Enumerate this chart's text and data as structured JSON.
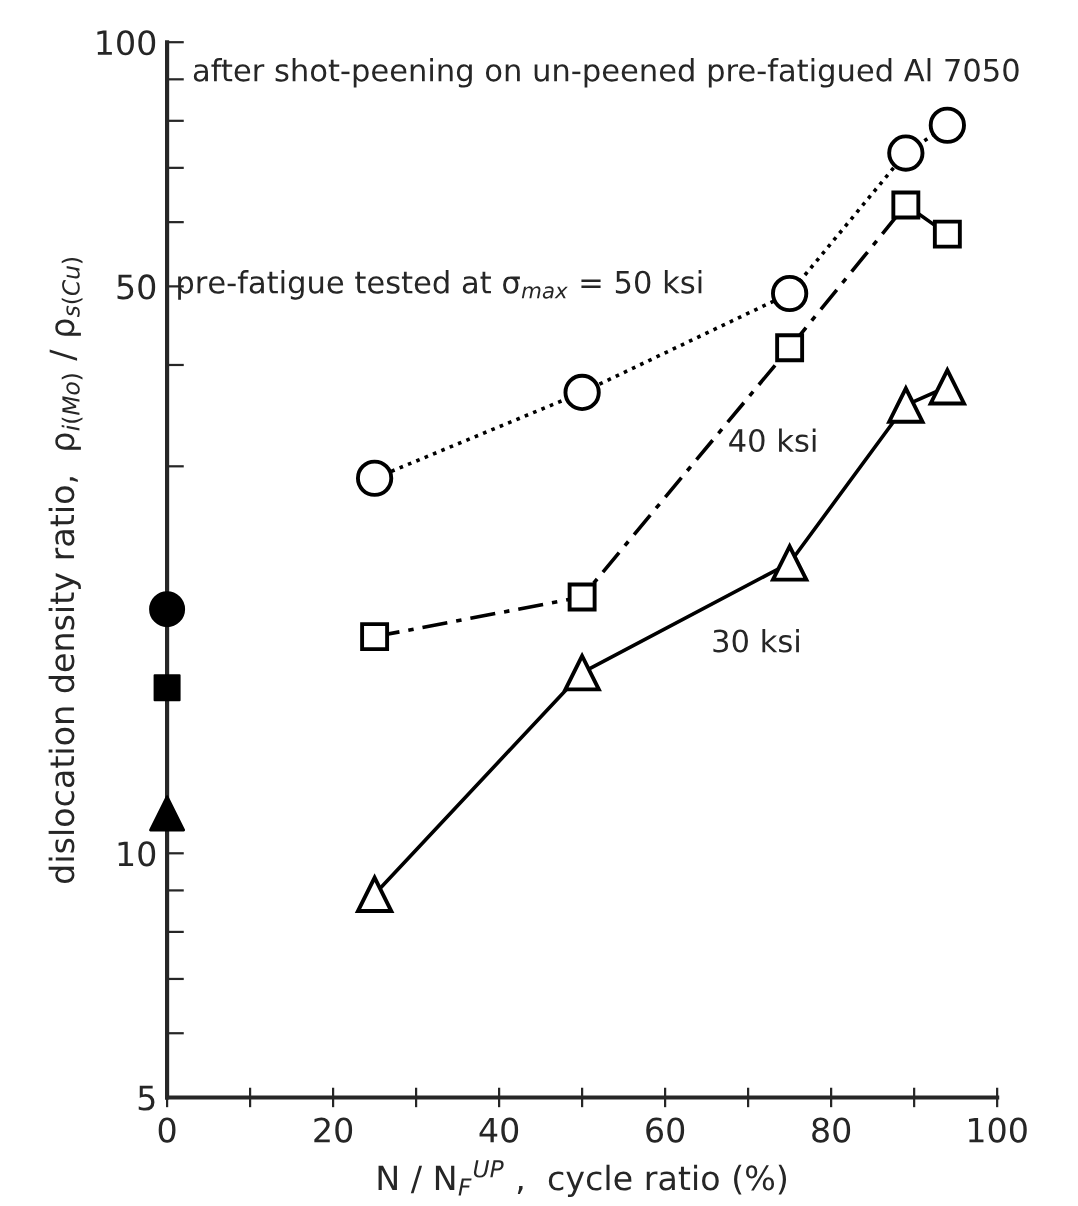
{
  "chart_data": {
    "type": "line",
    "title": "after shot-peening on un-peened pre-fatigued Al 7050",
    "xlabel": "N / N$_{F}$$^{UP}$ ,  cycle ratio (%)",
    "ylabel": "dislocation density ratio,  ρ$_{i(Mo)}$ / ρ$_{s(Cu)}$",
    "series": [
      {
        "color": "#000000",
        "marker": "circle",
        "line_style": "dotted",
        "x": [
          25,
          50,
          75,
          89,
          94
        ],
        "values": [
          29,
          37,
          49,
          73,
          79
        ]
      },
      {
        "color": "#000000",
        "marker": "square",
        "line_style": "dashed",
        "x": [
          25,
          50,
          75,
          89,
          94
        ],
        "values": [
          18.5,
          20.7,
          42,
          63,
          58
        ]
      },
      {
        "color": "#000000",
        "marker": "triangle",
        "line_style": "solid",
        "x": [
          25,
          50,
          75,
          89,
          94
        ],
        "values": [
          8.9,
          16.7,
          22.8,
          35.7,
          37.6
        ]
      },
      {
        "type": "scatter",
        "color": "#000000",
        "marker": "circle",
        "x": [
          0
        ],
        "values": [
          20
        ]
      },
      {
        "type": "scatter",
        "color": "#000000",
        "marker": "square",
        "x": [
          0
        ],
        "values": [
          16
        ]
      },
      {
        "type": "scatter",
        "color": "#000000",
        "marker": "triangle",
        "x": [
          0
        ],
        "values": [
          11.2
        ]
      }
    ],
    "annotations": [
      "pre-fatigue tested at σ$_{max}$ = 50 ksi",
      "40 ksi",
      "30 ksi"
    ],
    "log": "y",
    "xlim": [
      0,
      100
    ],
    "xticks": [
      0,
      {
        "value": 10,
        "label": null
      },
      20,
      {
        "value": 30,
        "label": null
      },
      40,
      {
        "value": 50,
        "label": null
      },
      60,
      {
        "value": 70,
        "label": null
      },
      80,
      {
        "value": 90,
        "label": null
      },
      100
    ],
    "ylim": [
      5,
      100
    ],
    "yticks": [
      5,
      {
        "value": 6,
        "label": null
      },
      {
        "value": 7,
        "label": null
      },
      {
        "value": 8,
        "label": null
      },
      {
        "value": 9,
        "label": null
      },
      10,
      {
        "value": 20,
        "label": null
      },
      {
        "value": 30,
        "label": null
      },
      {
        "value": 40,
        "label": null
      },
      50,
      {
        "value": 60,
        "label": null
      },
      {
        "value": 70,
        "label": null
      },
      {
        "value": 80,
        "label": null
      },
      {
        "value": 90,
        "label": null
      },
      100
    ],
    "grid": false,
    "legend": false
  }
}
